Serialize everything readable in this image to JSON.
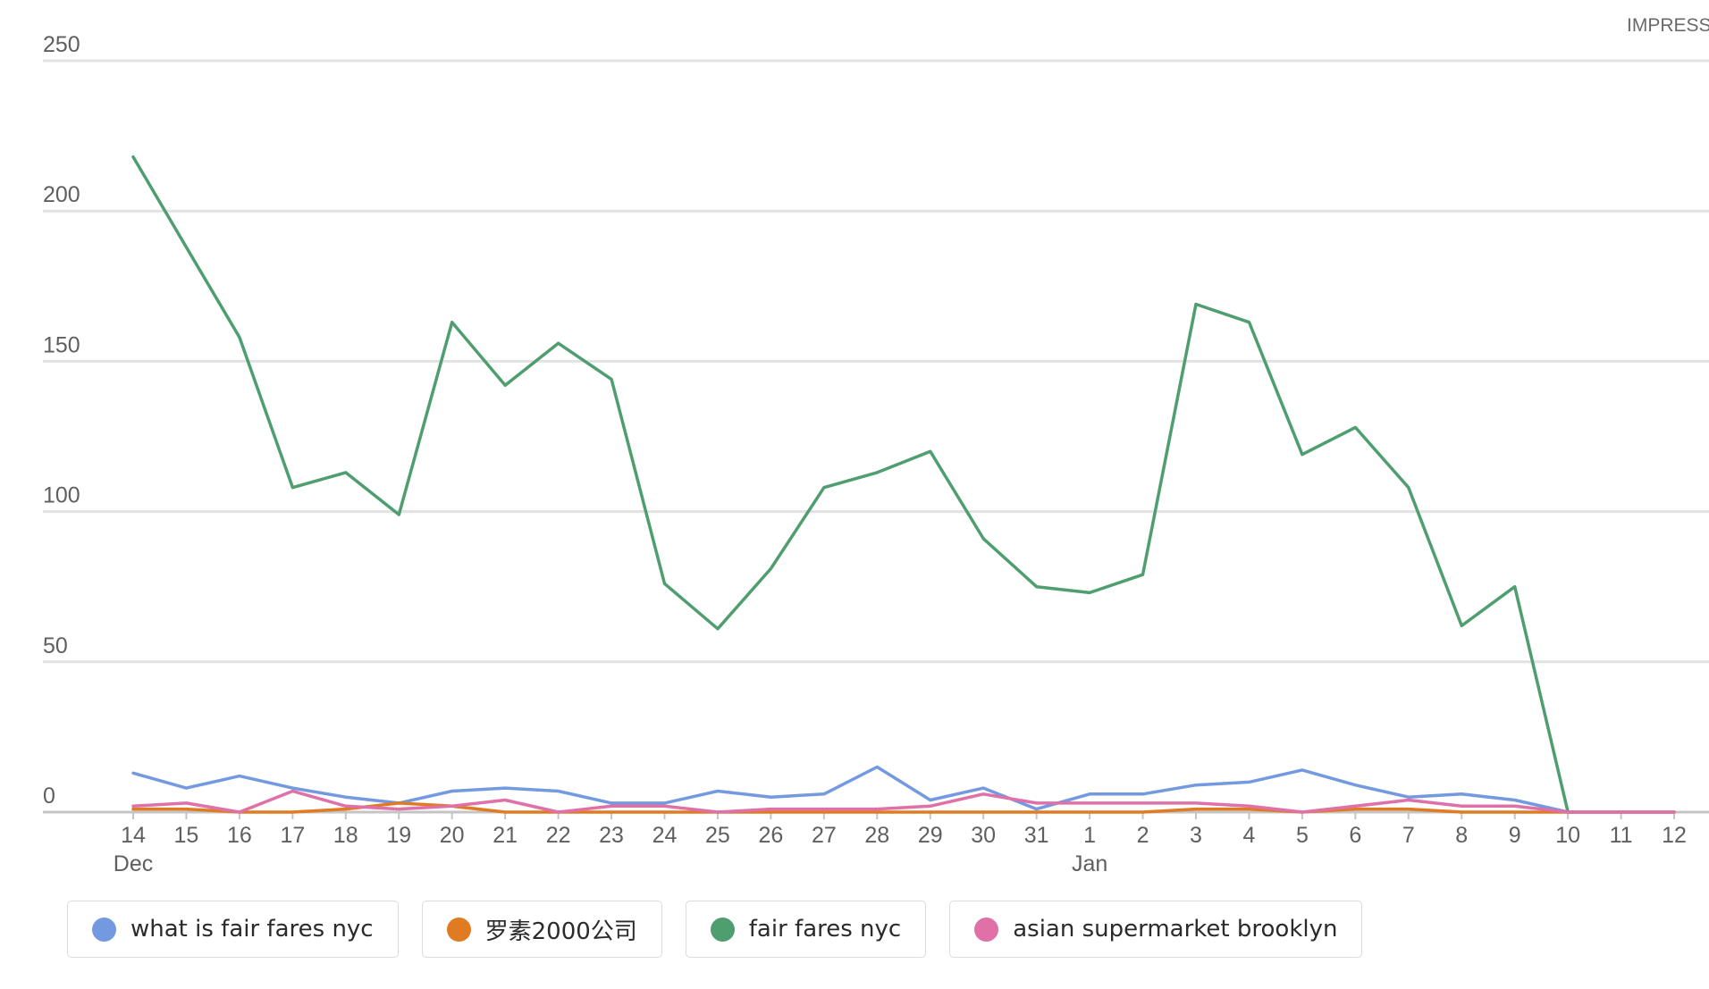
{
  "chart_data": {
    "type": "line",
    "title": "",
    "xlabel": "",
    "ylabel": "IMPRESS",
    "ylim": [
      0,
      250
    ],
    "yticks": [
      0,
      50,
      100,
      150,
      200,
      250
    ],
    "grid": true,
    "legend_position": "bottom",
    "x": [
      "14",
      "15",
      "16",
      "17",
      "18",
      "19",
      "20",
      "21",
      "22",
      "23",
      "24",
      "25",
      "26",
      "27",
      "28",
      "29",
      "30",
      "31",
      "1",
      "2",
      "3",
      "4",
      "5",
      "6",
      "7",
      "8",
      "9",
      "10",
      "11",
      "12"
    ],
    "month_labels": [
      {
        "index": 0,
        "label": "Dec"
      },
      {
        "index": 18,
        "label": "Jan"
      }
    ],
    "series": [
      {
        "name": "what is fair fares nyc",
        "color": "#7399e0",
        "values": [
          13,
          8,
          12,
          8,
          5,
          3,
          7,
          8,
          7,
          3,
          3,
          7,
          5,
          6,
          15,
          4,
          8,
          1,
          6,
          6,
          9,
          10,
          14,
          9,
          5,
          6,
          4,
          0,
          0,
          0
        ]
      },
      {
        "name": "罗素2000公司",
        "color": "#e07b22",
        "values": [
          1,
          1,
          0,
          0,
          1,
          3,
          2,
          0,
          0,
          0,
          0,
          0,
          0,
          0,
          0,
          0,
          0,
          0,
          0,
          0,
          1,
          1,
          0,
          1,
          1,
          0,
          0,
          0,
          0,
          0
        ]
      },
      {
        "name": "fair fares nyc",
        "color": "#4f9e6f",
        "values": [
          218,
          188,
          158,
          108,
          113,
          99,
          163,
          142,
          156,
          144,
          76,
          61,
          81,
          108,
          113,
          120,
          91,
          75,
          73,
          79,
          169,
          163,
          119,
          128,
          108,
          62,
          75,
          0,
          0,
          0
        ]
      },
      {
        "name": "asian supermarket brooklyn",
        "color": "#e070a8",
        "values": [
          2,
          3,
          0,
          7,
          2,
          1,
          2,
          4,
          0,
          2,
          2,
          0,
          1,
          1,
          1,
          2,
          6,
          3,
          3,
          3,
          3,
          2,
          0,
          2,
          4,
          2,
          2,
          0,
          0,
          0
        ]
      }
    ]
  }
}
